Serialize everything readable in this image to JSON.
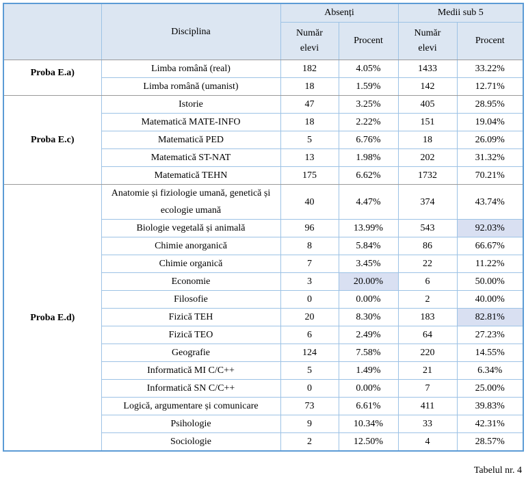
{
  "colors": {
    "header_fill": "#dce6f2",
    "border_inner": "#9cc2e5",
    "border_outer": "#5b9bd5",
    "border_section": "#999999",
    "highlight_fill": "#d9e0f2"
  },
  "header": {
    "corner": "",
    "disciplina": "Disciplina",
    "groups": [
      "Absenți",
      "Medii sub 5"
    ],
    "subcolumns": [
      "Număr\nelevi",
      "Procent",
      "Număr\nelevi",
      "Procent"
    ]
  },
  "sections": [
    {
      "label": "Proba E.a)",
      "rows": [
        {
          "disciplina": "Limba română (real)",
          "values": [
            "182",
            "4.05%",
            "1433",
            "33.22%"
          ],
          "highlights": []
        },
        {
          "disciplina": "Limba română (umanist)",
          "values": [
            "18",
            "1.59%",
            "142",
            "12.71%"
          ],
          "highlights": []
        }
      ]
    },
    {
      "label": "Proba E.c)",
      "rows": [
        {
          "disciplina": "Istorie",
          "values": [
            "47",
            "3.25%",
            "405",
            "28.95%"
          ],
          "highlights": []
        },
        {
          "disciplina": "Matematică MATE-INFO",
          "values": [
            "18",
            "2.22%",
            "151",
            "19.04%"
          ],
          "highlights": []
        },
        {
          "disciplina": "Matematică PED",
          "values": [
            "5",
            "6.76%",
            "18",
            "26.09%"
          ],
          "highlights": []
        },
        {
          "disciplina": "Matematică ST-NAT",
          "values": [
            "13",
            "1.98%",
            "202",
            "31.32%"
          ],
          "highlights": []
        },
        {
          "disciplina": "Matematică TEHN",
          "values": [
            "175",
            "6.62%",
            "1732",
            "70.21%"
          ],
          "highlights": []
        }
      ]
    },
    {
      "label": "Proba E.d)",
      "rows": [
        {
          "disciplina": "Anatomie și fiziologie umană, genetică și ecologie umană",
          "values": [
            "40",
            "4.47%",
            "374",
            "43.74%"
          ],
          "highlights": []
        },
        {
          "disciplina": "Biologie vegetală și animală",
          "values": [
            "96",
            "13.99%",
            "543",
            "92.03%"
          ],
          "highlights": [
            3
          ]
        },
        {
          "disciplina": "Chimie anorganică",
          "values": [
            "8",
            "5.84%",
            "86",
            "66.67%"
          ],
          "highlights": []
        },
        {
          "disciplina": "Chimie organică",
          "values": [
            "7",
            "3.45%",
            "22",
            "11.22%"
          ],
          "highlights": []
        },
        {
          "disciplina": "Economie",
          "values": [
            "3",
            "20.00%",
            "6",
            "50.00%"
          ],
          "highlights": [
            1
          ]
        },
        {
          "disciplina": "Filosofie",
          "values": [
            "0",
            "0.00%",
            "2",
            "40.00%"
          ],
          "highlights": []
        },
        {
          "disciplina": "Fizică TEH",
          "values": [
            "20",
            "8.30%",
            "183",
            "82.81%"
          ],
          "highlights": [
            3
          ]
        },
        {
          "disciplina": "Fizică TEO",
          "values": [
            "6",
            "2.49%",
            "64",
            "27.23%"
          ],
          "highlights": []
        },
        {
          "disciplina": "Geografie",
          "values": [
            "124",
            "7.58%",
            "220",
            "14.55%"
          ],
          "highlights": []
        },
        {
          "disciplina": "Informatică MI C/C++",
          "values": [
            "5",
            "1.49%",
            "21",
            "6.34%"
          ],
          "highlights": []
        },
        {
          "disciplina": "Informatică SN C/C++",
          "values": [
            "0",
            "0.00%",
            "7",
            "25.00%"
          ],
          "highlights": []
        },
        {
          "disciplina": "Logică, argumentare și comunicare",
          "values": [
            "73",
            "6.61%",
            "411",
            "39.83%"
          ],
          "highlights": []
        },
        {
          "disciplina": "Psihologie",
          "values": [
            "9",
            "10.34%",
            "33",
            "42.31%"
          ],
          "highlights": []
        },
        {
          "disciplina": "Sociologie",
          "values": [
            "2",
            "12.50%",
            "4",
            "28.57%"
          ],
          "highlights": []
        }
      ]
    }
  ],
  "caption": "Tabelul nr. 4"
}
